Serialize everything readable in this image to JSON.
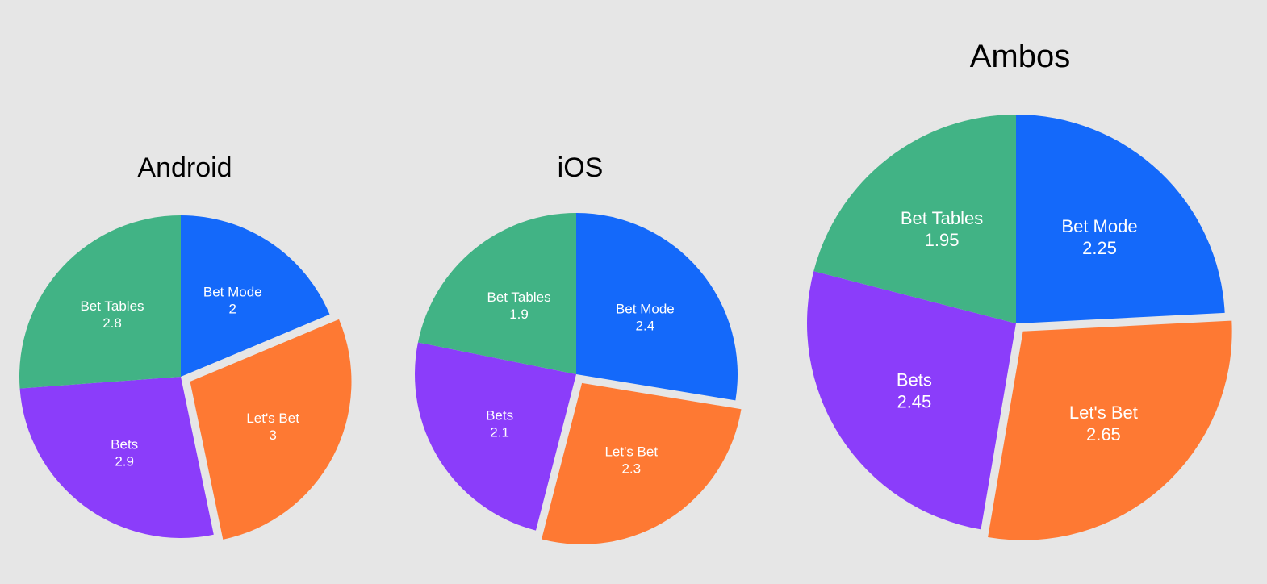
{
  "chart_data": [
    {
      "type": "pie",
      "title": "Android",
      "slices": [
        {
          "label": "Bet Mode",
          "value": 2,
          "value_text": "2",
          "color": "#1469fa",
          "exploded": false
        },
        {
          "label": "Let's Bet",
          "value": 3,
          "value_text": "3",
          "color": "#fe7933",
          "exploded": true
        },
        {
          "label": "Bets",
          "value": 2.9,
          "value_text": "2.9",
          "color": "#8b3dfa",
          "exploded": false
        },
        {
          "label": "Bet Tables",
          "value": 2.8,
          "value_text": "2.8",
          "color": "#41b385",
          "exploded": false
        }
      ]
    },
    {
      "type": "pie",
      "title": "iOS",
      "slices": [
        {
          "label": "Bet Mode",
          "value": 2.4,
          "value_text": "2.4",
          "color": "#1469fa",
          "exploded": false
        },
        {
          "label": "Let's Bet",
          "value": 2.3,
          "value_text": "2.3",
          "color": "#fe7933",
          "exploded": true
        },
        {
          "label": "Bets",
          "value": 2.1,
          "value_text": "2.1",
          "color": "#8b3dfa",
          "exploded": false
        },
        {
          "label": "Bet Tables",
          "value": 1.9,
          "value_text": "1.9",
          "color": "#41b385",
          "exploded": false
        }
      ]
    },
    {
      "type": "pie",
      "title": "Ambos",
      "slices": [
        {
          "label": "Bet Mode",
          "value": 2.25,
          "value_text": "2.25",
          "color": "#1469fa",
          "exploded": false
        },
        {
          "label": "Let's Bet",
          "value": 2.65,
          "value_text": "2.65",
          "color": "#fe7933",
          "exploded": true
        },
        {
          "label": "Bets",
          "value": 2.45,
          "value_text": "2.45",
          "color": "#8b3dfa",
          "exploded": false
        },
        {
          "label": "Bet Tables",
          "value": 1.95,
          "value_text": "1.95",
          "color": "#41b385",
          "exploded": false
        }
      ]
    }
  ]
}
